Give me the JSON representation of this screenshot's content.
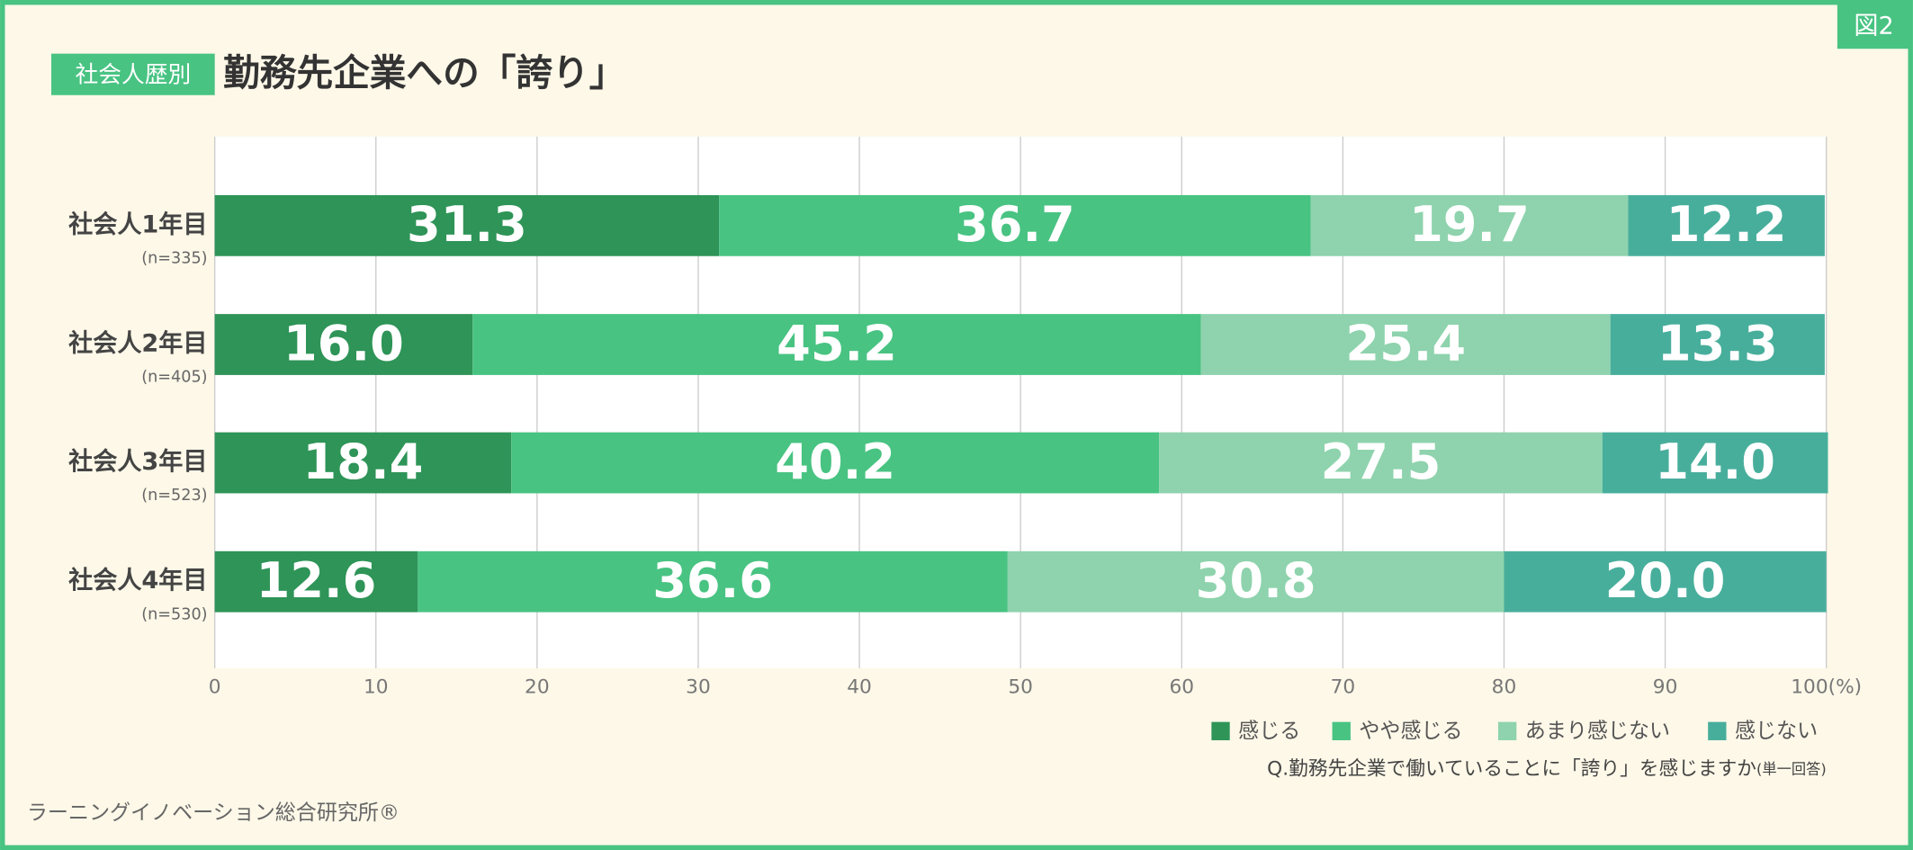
{
  "figure_number": "図2",
  "chart_data": {
    "type": "stacked-bar-horizontal",
    "title_tag": "社会人歴別",
    "title": "勤務先企業への「誇り」",
    "categories": [
      "社会人1年目",
      "社会人2年目",
      "社会人3年目",
      "社会人4年目"
    ],
    "sample_sizes": [
      "(n=335)",
      "(n=405)",
      "(n=523)",
      "(n=530)"
    ],
    "series": [
      {
        "name": "感じる",
        "color": "#2e9457",
        "values": [
          31.3,
          16.0,
          18.4,
          12.6
        ],
        "value_labels": [
          "31.3",
          "16.0",
          "18.4",
          "12.6"
        ]
      },
      {
        "name": "やや感じる",
        "color": "#48c382",
        "values": [
          36.7,
          45.2,
          40.2,
          36.6
        ],
        "value_labels": [
          "36.7",
          "45.2",
          "40.2",
          "36.6"
        ]
      },
      {
        "name": "あまり感じない",
        "color": "#8ed3ad",
        "values": [
          19.7,
          25.4,
          27.5,
          30.8
        ],
        "value_labels": [
          "19.7",
          "25.4",
          "27.5",
          "30.8"
        ]
      },
      {
        "name": "感じない",
        "color": "#48ae9c",
        "values": [
          12.2,
          13.3,
          14.0,
          20.0
        ],
        "value_labels": [
          "12.2",
          "13.3",
          "14.0",
          "20.0"
        ]
      }
    ],
    "xlim": [
      0,
      100
    ],
    "xticks": [
      0,
      10,
      20,
      30,
      40,
      50,
      60,
      70,
      80,
      90,
      {
        "value": 100,
        "label": "100(%)"
      }
    ],
    "grid": true,
    "legend_position": "bottom-right",
    "question": "Q.勤務先企業で働いていることに「誇り」を感じますか",
    "question_note": "(単一回答)"
  },
  "source": "ラーニングイノベーション総合研究所®"
}
